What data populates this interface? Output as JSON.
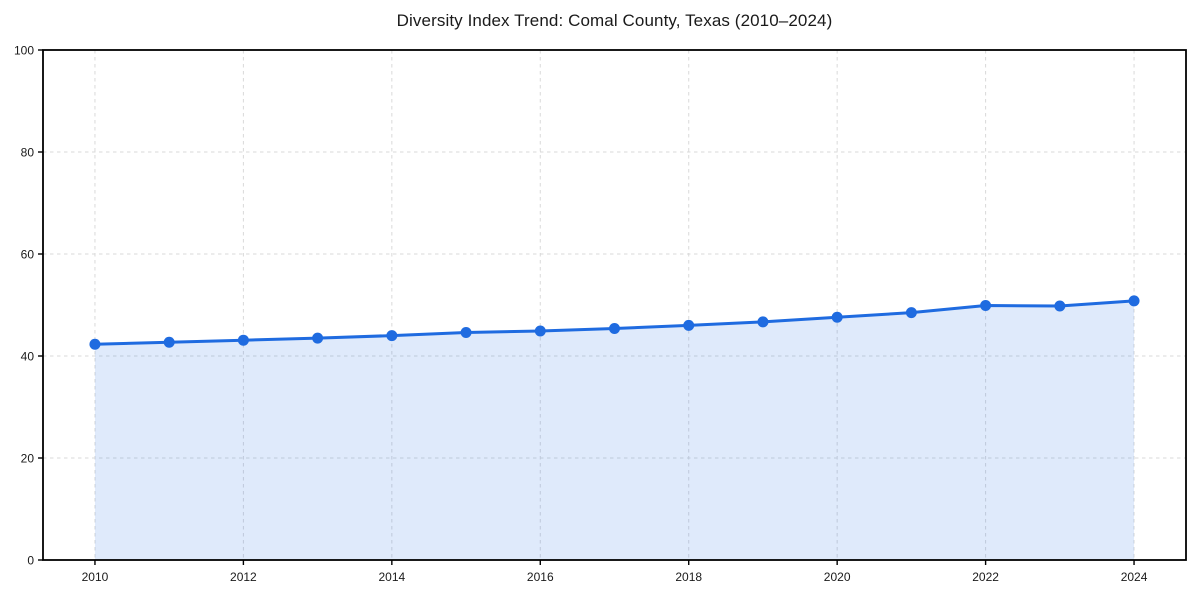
{
  "figure": {
    "background_color": "#ffffff"
  },
  "chart_data": {
    "type": "line",
    "title": "Diversity Index Trend: Comal County, Texas (2010–2024)",
    "xlabel": "",
    "ylabel": "",
    "x": [
      2010,
      2011,
      2012,
      2013,
      2014,
      2015,
      2016,
      2017,
      2018,
      2019,
      2020,
      2021,
      2022,
      2023,
      2024
    ],
    "series": [
      {
        "name": "Diversity Index",
        "values": [
          42.3,
          42.7,
          43.1,
          43.5,
          44.0,
          44.6,
          44.9,
          45.4,
          46.0,
          46.7,
          47.6,
          48.5,
          49.9,
          49.8,
          50.8
        ]
      }
    ],
    "xlim": [
      2009.3,
      2024.7
    ],
    "ylim": [
      0,
      100
    ],
    "x_ticks": [
      2010,
      2012,
      2014,
      2016,
      2018,
      2020,
      2022,
      2024
    ],
    "y_ticks": [
      0,
      20,
      40,
      60,
      80,
      100
    ],
    "grid": "dashed",
    "legend_position": "none",
    "area_fill": true,
    "line_color": "#1f6be0",
    "fill_opacity": 0.14,
    "grid_color": "#d9d9d9",
    "spine_color": "#000000",
    "tick_label_color": "#1a1a1a",
    "marker": "circle"
  }
}
